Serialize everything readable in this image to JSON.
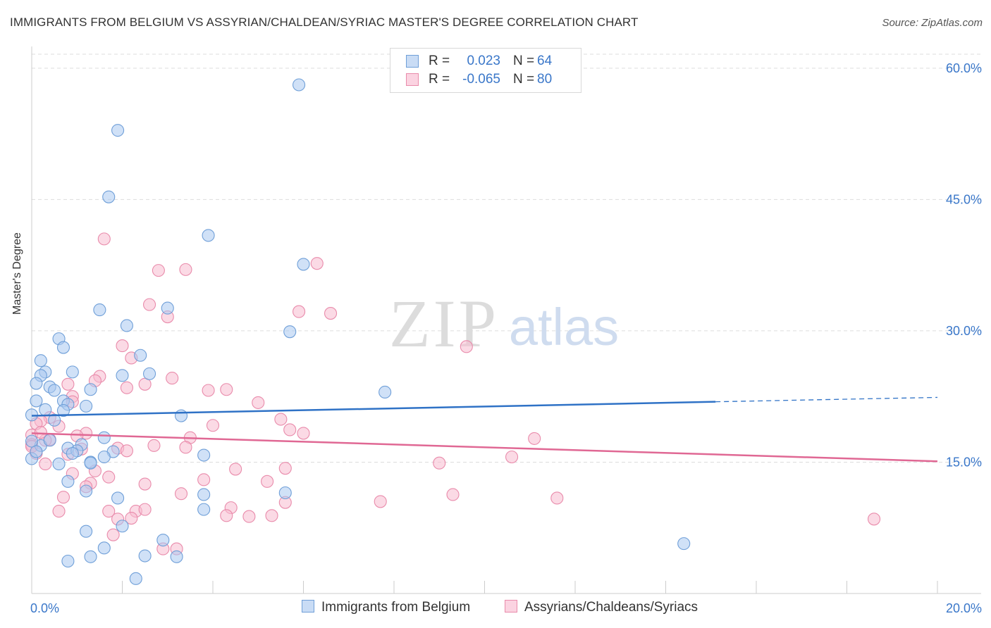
{
  "header": {
    "title": "IMMIGRANTS FROM BELGIUM VS ASSYRIAN/CHALDEAN/SYRIAC MASTER'S DEGREE CORRELATION CHART",
    "source": "Source: ZipAtlas.com"
  },
  "watermark": {
    "zip": "ZIP",
    "atlas": "atlas"
  },
  "legend": {
    "series1": {
      "r_label": "R =",
      "r_value": "0.023",
      "n_label": "N =",
      "n_value": "64"
    },
    "series2": {
      "r_label": "R =",
      "r_value": "-0.065",
      "n_label": "N =",
      "n_value": "80"
    }
  },
  "bottom_legend": {
    "series1": "Immigrants from Belgium",
    "series2": "Assyrians/Chaldeans/Syriacs"
  },
  "colors": {
    "blue_fill": "#a9c8f0",
    "blue_stroke": "#6f9fd8",
    "blue_line": "#2f72c6",
    "pink_fill": "#f7bcd0",
    "pink_stroke": "#e98bab",
    "pink_line": "#e06894",
    "axis_text": "#3a77c9"
  },
  "chart_data": {
    "type": "scatter",
    "title": "IMMIGRANTS FROM BELGIUM VS ASSYRIAN/CHALDEAN/SYRIAC MASTER'S DEGREE CORRELATION CHART",
    "xlabel": "",
    "ylabel": "Master's Degree",
    "xlim": [
      0,
      20
    ],
    "ylim": [
      0,
      62
    ],
    "x_ticks": [
      "0.0%",
      "20.0%"
    ],
    "y_ticks": [
      {
        "value": 15,
        "label": "15.0%"
      },
      {
        "value": 30,
        "label": "30.0%"
      },
      {
        "value": 45,
        "label": "45.0%"
      },
      {
        "value": 60,
        "label": "60.0%"
      }
    ],
    "grid": true,
    "legend_position": "top-center",
    "series": [
      {
        "name": "Immigrants from Belgium",
        "color": "#6f9fd8",
        "r": 0.023,
        "n": 64,
        "trend": {
          "x": [
            0,
            15.1
          ],
          "y": [
            20.3,
            21.9
          ],
          "dash_to": [
            20,
            22.4
          ]
        },
        "points": [
          [
            5.9,
            58.1
          ],
          [
            1.9,
            52.9
          ],
          [
            1.7,
            45.3
          ],
          [
            3.9,
            40.9
          ],
          [
            6.0,
            37.6
          ],
          [
            1.5,
            32.4
          ],
          [
            3.0,
            32.6
          ],
          [
            2.1,
            30.6
          ],
          [
            2.0,
            24.9
          ],
          [
            0.6,
            29.1
          ],
          [
            5.7,
            29.9
          ],
          [
            0.7,
            28.1
          ],
          [
            2.4,
            27.2
          ],
          [
            0.2,
            26.6
          ],
          [
            0.9,
            25.3
          ],
          [
            0.3,
            25.3
          ],
          [
            2.6,
            25.1
          ],
          [
            0.2,
            24.9
          ],
          [
            0.1,
            24.0
          ],
          [
            0.4,
            23.6
          ],
          [
            0.5,
            23.2
          ],
          [
            1.3,
            23.3
          ],
          [
            7.8,
            23.0
          ],
          [
            0.7,
            22.0
          ],
          [
            0.8,
            21.6
          ],
          [
            0.1,
            22.0
          ],
          [
            0.3,
            21.0
          ],
          [
            1.2,
            21.4
          ],
          [
            0.7,
            20.9
          ],
          [
            0.0,
            20.4
          ],
          [
            3.3,
            20.3
          ],
          [
            0.5,
            19.8
          ],
          [
            1.6,
            17.8
          ],
          [
            1.1,
            17.0
          ],
          [
            0.8,
            16.6
          ],
          [
            1.0,
            16.3
          ],
          [
            1.8,
            16.2
          ],
          [
            0.9,
            16.0
          ],
          [
            3.8,
            15.8
          ],
          [
            1.6,
            15.6
          ],
          [
            0.0,
            15.4
          ],
          [
            1.3,
            15.0
          ],
          [
            1.3,
            14.9
          ],
          [
            0.6,
            14.8
          ],
          [
            0.8,
            12.8
          ],
          [
            1.2,
            11.7
          ],
          [
            3.8,
            11.3
          ],
          [
            5.6,
            11.5
          ],
          [
            1.9,
            10.9
          ],
          [
            3.8,
            9.6
          ],
          [
            0.2,
            16.9
          ],
          [
            1.2,
            7.1
          ],
          [
            2.0,
            7.7
          ],
          [
            2.9,
            6.1
          ],
          [
            14.4,
            5.7
          ],
          [
            1.6,
            5.2
          ],
          [
            1.3,
            4.2
          ],
          [
            2.5,
            4.3
          ],
          [
            3.2,
            4.2
          ],
          [
            0.8,
            3.7
          ],
          [
            2.3,
            1.7
          ],
          [
            0.0,
            17.4
          ],
          [
            0.4,
            17.5
          ],
          [
            0.1,
            16.2
          ]
        ]
      },
      {
        "name": "Assyrians/Chaldeans/Syriacs",
        "color": "#e98bab",
        "r": -0.065,
        "n": 80,
        "trend": {
          "x": [
            0,
            20
          ],
          "y": [
            18.3,
            15.1
          ]
        },
        "points": [
          [
            1.6,
            40.5
          ],
          [
            6.3,
            37.7
          ],
          [
            2.8,
            36.9
          ],
          [
            3.4,
            37.0
          ],
          [
            2.6,
            33.0
          ],
          [
            5.9,
            32.2
          ],
          [
            6.6,
            32.0
          ],
          [
            3.0,
            31.6
          ],
          [
            2.0,
            28.3
          ],
          [
            9.6,
            28.2
          ],
          [
            2.2,
            26.9
          ],
          [
            1.5,
            24.8
          ],
          [
            3.1,
            24.6
          ],
          [
            1.4,
            24.3
          ],
          [
            0.8,
            23.9
          ],
          [
            2.5,
            23.9
          ],
          [
            2.1,
            23.5
          ],
          [
            4.3,
            23.3
          ],
          [
            3.9,
            23.2
          ],
          [
            0.9,
            22.5
          ],
          [
            0.9,
            21.9
          ],
          [
            5.0,
            21.8
          ],
          [
            0.4,
            20.1
          ],
          [
            0.2,
            19.7
          ],
          [
            5.5,
            19.9
          ],
          [
            0.6,
            19.1
          ],
          [
            4.0,
            19.2
          ],
          [
            5.7,
            18.7
          ],
          [
            6.0,
            18.3
          ],
          [
            1.2,
            18.3
          ],
          [
            0.0,
            18.1
          ],
          [
            1.0,
            18.0
          ],
          [
            3.5,
            17.8
          ],
          [
            11.1,
            17.7
          ],
          [
            0.4,
            17.6
          ],
          [
            0.3,
            17.5
          ],
          [
            0.0,
            17.0
          ],
          [
            2.7,
            16.9
          ],
          [
            3.4,
            16.7
          ],
          [
            1.9,
            16.6
          ],
          [
            1.1,
            16.5
          ],
          [
            0.1,
            16.0
          ],
          [
            2.1,
            16.3
          ],
          [
            0.8,
            15.9
          ],
          [
            10.6,
            15.6
          ],
          [
            0.3,
            14.8
          ],
          [
            9.0,
            14.9
          ],
          [
            5.6,
            14.3
          ],
          [
            4.5,
            14.2
          ],
          [
            1.4,
            14.0
          ],
          [
            0.9,
            13.7
          ],
          [
            1.7,
            13.3
          ],
          [
            3.8,
            13.0
          ],
          [
            5.2,
            12.8
          ],
          [
            1.3,
            12.6
          ],
          [
            2.5,
            12.5
          ],
          [
            1.2,
            12.2
          ],
          [
            0.7,
            11.0
          ],
          [
            3.3,
            11.4
          ],
          [
            9.3,
            11.3
          ],
          [
            11.6,
            10.9
          ],
          [
            7.7,
            10.5
          ],
          [
            5.6,
            10.4
          ],
          [
            0.6,
            9.4
          ],
          [
            1.7,
            9.4
          ],
          [
            2.3,
            9.4
          ],
          [
            2.5,
            9.6
          ],
          [
            4.4,
            9.8
          ],
          [
            4.3,
            8.9
          ],
          [
            4.8,
            8.8
          ],
          [
            5.3,
            8.9
          ],
          [
            18.6,
            8.5
          ],
          [
            1.9,
            8.5
          ],
          [
            2.2,
            8.6
          ],
          [
            1.8,
            6.7
          ],
          [
            2.9,
            5.1
          ],
          [
            3.2,
            5.1
          ],
          [
            0.0,
            16.8
          ],
          [
            0.1,
            19.4
          ],
          [
            0.2,
            18.4
          ]
        ]
      }
    ]
  }
}
